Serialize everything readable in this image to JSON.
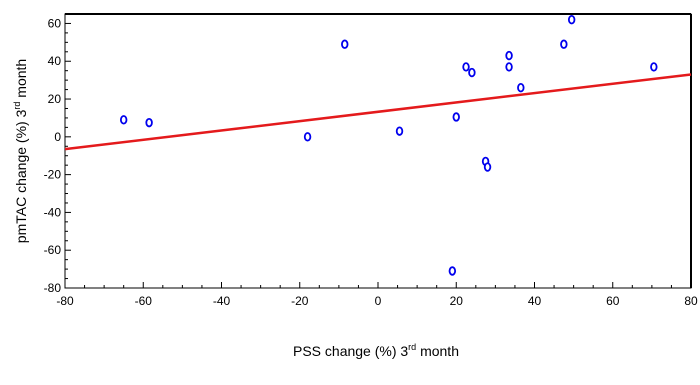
{
  "chart_data": {
    "type": "scatter",
    "xlabel": {
      "pre": "PSS change (%) 3",
      "sup": "rd",
      "post": " month"
    },
    "ylabel": {
      "pre": "pmTAC change (%) 3",
      "sup": "rd",
      "post": " month"
    },
    "xlim": [
      -80,
      80
    ],
    "ylim": [
      -80,
      65
    ],
    "xticks": [
      -80,
      -60,
      -40,
      -20,
      0,
      20,
      40,
      60,
      80
    ],
    "yticks": [
      -80,
      -60,
      -40,
      -20,
      0,
      20,
      40,
      60
    ],
    "grid": false,
    "point_color": "#0000ee",
    "line_color": "#e41a1c",
    "points": [
      {
        "x": -65,
        "y": 9
      },
      {
        "x": -58.5,
        "y": 7.5
      },
      {
        "x": -18,
        "y": 0
      },
      {
        "x": -8.5,
        "y": 49
      },
      {
        "x": 5.5,
        "y": 3
      },
      {
        "x": 19,
        "y": -71
      },
      {
        "x": 20,
        "y": 10.5
      },
      {
        "x": 22.5,
        "y": 37
      },
      {
        "x": 24,
        "y": 34
      },
      {
        "x": 27.5,
        "y": -13
      },
      {
        "x": 28,
        "y": -16
      },
      {
        "x": 33.5,
        "y": 43
      },
      {
        "x": 33.5,
        "y": 37
      },
      {
        "x": 36.5,
        "y": 26
      },
      {
        "x": 47.5,
        "y": 49
      },
      {
        "x": 49.5,
        "y": 62
      },
      {
        "x": 70.5,
        "y": 37
      }
    ],
    "regression_line": {
      "x": [
        -80,
        80
      ],
      "y": [
        -6.5,
        33
      ]
    }
  }
}
